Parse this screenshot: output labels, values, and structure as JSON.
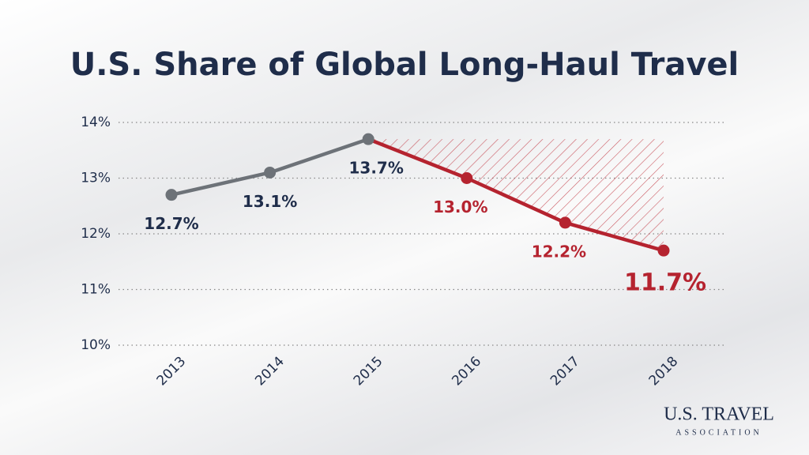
{
  "chart_data": {
    "type": "line",
    "title": "U.S. Share of Global Long-Haul Travel",
    "categories": [
      "2013",
      "2014",
      "2015",
      "2016",
      "2017",
      "2018"
    ],
    "values": [
      12.7,
      13.1,
      13.7,
      13.0,
      12.2,
      11.7
    ],
    "value_labels": [
      "12.7%",
      "13.1%",
      "13.7%",
      "13.0%",
      "12.2%",
      "11.7%"
    ],
    "point_colors": [
      "#6d7278",
      "#6d7278",
      "#6d7278",
      "#b5232f",
      "#b5232f",
      "#b5232f"
    ],
    "ylim": [
      10,
      14
    ],
    "yticks": [
      {
        "value": 10,
        "label": "10%"
      },
      {
        "value": 11,
        "label": "11%"
      },
      {
        "value": 12,
        "label": "12%"
      },
      {
        "value": 13,
        "label": "13%"
      },
      {
        "value": 14,
        "label": "14%"
      }
    ],
    "grid": true,
    "logo": {
      "name": "U.S. TRAVEL",
      "sub": "ASSOCIATION"
    }
  }
}
